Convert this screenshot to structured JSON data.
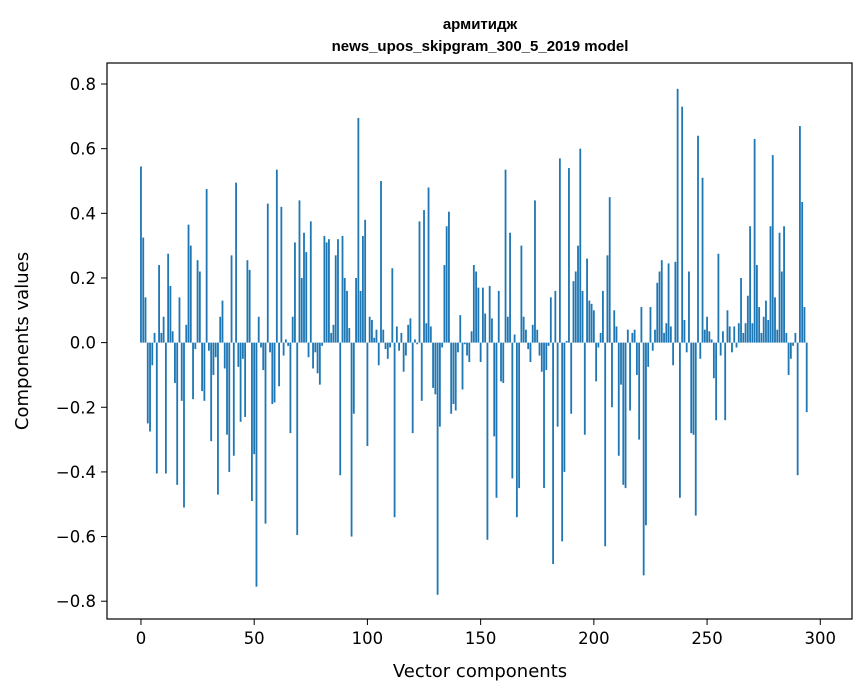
{
  "chart_data": {
    "type": "bar",
    "title": "армитидж",
    "subtitle": "news_upos_skipgram_300_5_2019 model",
    "xlabel": "Vector components",
    "ylabel": "Components values",
    "xlim": [
      -15,
      314
    ],
    "ylim": [
      -0.855,
      0.865
    ],
    "xticks": [
      0,
      50,
      100,
      150,
      200,
      250,
      300
    ],
    "yticks": [
      -0.8,
      -0.6,
      -0.4,
      -0.2,
      0.0,
      0.2,
      0.4,
      0.6,
      0.8
    ],
    "ytick_labels": [
      "−0.8",
      "−0.6",
      "−0.4",
      "−0.2",
      "0.0",
      "0.2",
      "0.4",
      "0.6",
      "0.8"
    ],
    "bar_color": "#1f77b4",
    "grid": false,
    "values": [
      0.545,
      0.325,
      0.14,
      -0.25,
      -0.275,
      -0.07,
      0.03,
      -0.405,
      0.24,
      0.03,
      0.08,
      -0.405,
      0.275,
      0.175,
      0.035,
      -0.125,
      -0.44,
      0.14,
      -0.18,
      -0.51,
      0.055,
      0.365,
      0.3,
      -0.175,
      -0.02,
      0.255,
      0.22,
      -0.15,
      -0.18,
      0.475,
      -0.025,
      -0.305,
      -0.1,
      -0.045,
      -0.47,
      0.08,
      0.13,
      -0.08,
      -0.285,
      -0.4,
      0.27,
      -0.35,
      0.495,
      -0.075,
      -0.245,
      -0.05,
      -0.23,
      0.255,
      0.225,
      -0.49,
      -0.345,
      -0.755,
      0.08,
      -0.015,
      -0.085,
      -0.56,
      0.43,
      -0.03,
      -0.19,
      -0.185,
      0.535,
      -0.135,
      0.42,
      -0.04,
      0.01,
      -0.01,
      -0.28,
      0.08,
      0.31,
      -0.595,
      0.44,
      0.2,
      0.34,
      0.28,
      -0.045,
      0.375,
      -0.08,
      -0.03,
      -0.095,
      -0.13,
      -0.01,
      0.33,
      0.31,
      0.32,
      0.03,
      0.055,
      0.27,
      0.32,
      -0.41,
      0.33,
      0.2,
      0.16,
      0.045,
      -0.6,
      -0.22,
      0.2,
      0.695,
      0.16,
      0.33,
      0.38,
      -0.32,
      0.08,
      0.07,
      0.015,
      0.04,
      -0.07,
      0.5,
      0.04,
      -0.02,
      -0.05,
      -0.015,
      0.23,
      -0.54,
      0.05,
      -0.025,
      0.03,
      -0.09,
      -0.04,
      0.055,
      0.075,
      -0.28,
      0.01,
      -0.005,
      0.375,
      -0.18,
      0.41,
      0.06,
      0.48,
      0.05,
      -0.14,
      -0.16,
      -0.78,
      -0.26,
      -0.015,
      0.24,
      0.36,
      0.405,
      -0.22,
      -0.19,
      -0.21,
      -0.03,
      0.085,
      -0.145,
      -0.005,
      -0.04,
      -0.06,
      0.035,
      0.24,
      0.22,
      0.17,
      -0.06,
      0.17,
      0.09,
      -0.61,
      0.175,
      0.075,
      -0.29,
      -0.48,
      0.16,
      -0.12,
      -0.125,
      0.535,
      0.08,
      0.34,
      -0.42,
      0.025,
      -0.54,
      -0.45,
      0.3,
      0.08,
      0.04,
      -0.02,
      -0.06,
      0.055,
      0.44,
      0.04,
      -0.04,
      -0.09,
      -0.45,
      -0.085,
      -0.01,
      0.14,
      -0.685,
      0.16,
      -0.26,
      0.57,
      -0.615,
      -0.4,
      0.005,
      0.54,
      -0.22,
      0.19,
      0.22,
      0.3,
      0.6,
      0.16,
      -0.285,
      0.26,
      0.13,
      0.12,
      0.1,
      -0.12,
      -0.015,
      0.03,
      0.16,
      -0.63,
      0.27,
      0.45,
      -0.2,
      0.1,
      0.05,
      -0.35,
      -0.13,
      -0.44,
      -0.45,
      0.04,
      -0.21,
      0.03,
      0.04,
      -0.1,
      -0.3,
      0.11,
      -0.72,
      -0.565,
      -0.075,
      0.11,
      -0.025,
      0.04,
      0.185,
      0.22,
      0.255,
      0.03,
      0.06,
      0.245,
      0.05,
      -0.07,
      0.25,
      0.785,
      -0.48,
      0.73,
      0.07,
      -0.03,
      0.22,
      -0.28,
      -0.285,
      -0.535,
      0.64,
      -0.05,
      0.51,
      0.04,
      0.08,
      0.035,
      0.01,
      -0.11,
      -0.24,
      0.275,
      -0.04,
      0.035,
      -0.24,
      0.1,
      0.05,
      -0.03,
      0.05,
      -0.015,
      0.06,
      0.2,
      0.03,
      0.06,
      0.145,
      0.36,
      0.06,
      0.63,
      0.24,
      0.11,
      0.03,
      0.08,
      0.13,
      0.07,
      0.36,
      0.58,
      0.14,
      0.04,
      0.34,
      0.22,
      0.36,
      0.03,
      -0.1,
      -0.05,
      -0.01,
      0.03,
      -0.41,
      0.67,
      0.435,
      0.11,
      -0.215
    ]
  }
}
